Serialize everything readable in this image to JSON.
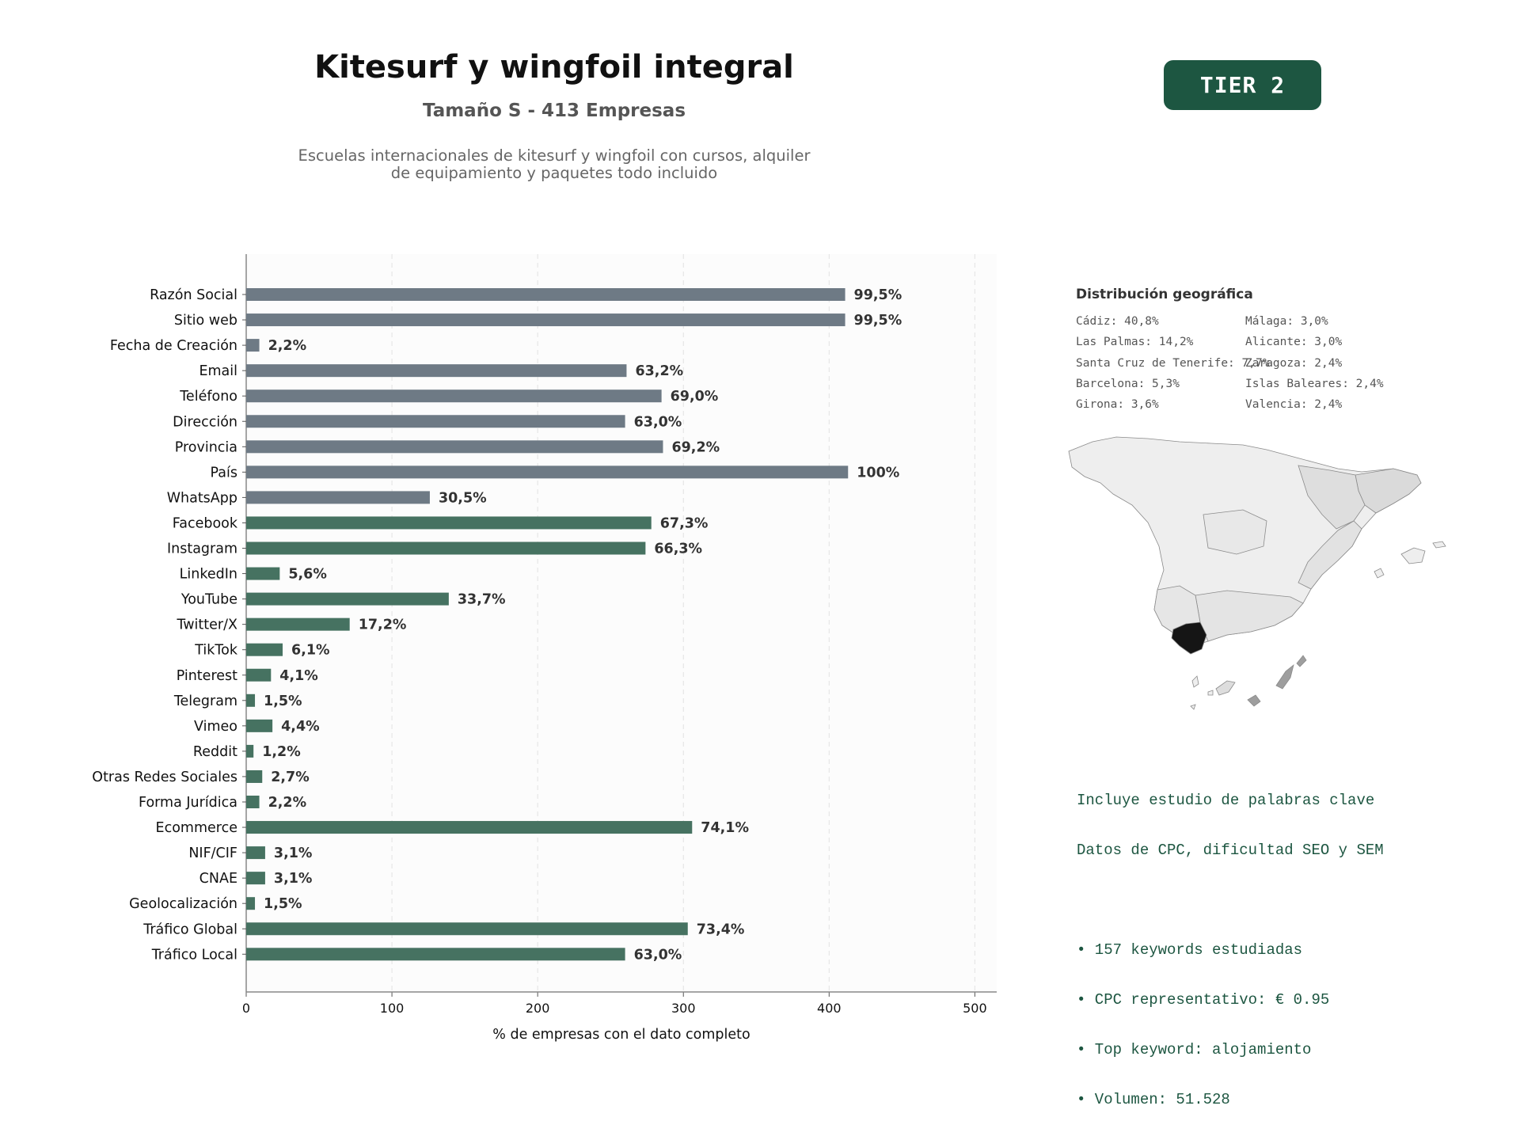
{
  "header": {
    "title": "Kitesurf y wingfoil integral",
    "subtitle": "Tamaño S - 413 Empresas",
    "description_line1": "Escuelas internacionales de kitesurf y wingfoil con cursos, alquiler",
    "description_line2": "de equipamiento y paquetes todo incluido",
    "tier_label": "TIER 2"
  },
  "colors": {
    "gray_bar": "#6e7a85",
    "green_bar": "#467261",
    "accent": "#1d5641",
    "highlight_region": "#151515"
  },
  "chart_data": {
    "type": "bar",
    "orientation": "horizontal",
    "xlabel": "% de empresas con el dato completo",
    "xlim": [
      0,
      515
    ],
    "xticks": [
      0,
      100,
      200,
      300,
      400,
      500
    ],
    "grid": "vertical dashed",
    "categories": [
      "Razón Social",
      "Sitio web",
      "Fecha de Creación",
      "Email",
      "Teléfono",
      "Dirección",
      "Provincia",
      "País",
      "WhatsApp",
      "Facebook",
      "Instagram",
      "LinkedIn",
      "YouTube",
      "Twitter/X",
      "TikTok",
      "Pinterest",
      "Telegram",
      "Vimeo",
      "Reddit",
      "Otras Redes Sociales",
      "Forma Jurídica",
      "Ecommerce",
      "NIF/CIF",
      "CNAE",
      "Geolocalización",
      "Tráfico Global",
      "Tráfico Local"
    ],
    "values": [
      411,
      411,
      9,
      261,
      285,
      260,
      286,
      413,
      126,
      278,
      274,
      23,
      139,
      71,
      25,
      17,
      6,
      18,
      5,
      11,
      9,
      306,
      13,
      13,
      6,
      303,
      260
    ],
    "labels": [
      "99,5%",
      "99,5%",
      "2,2%",
      "63,2%",
      "69,0%",
      "63,0%",
      "69,2%",
      "100%",
      "30,5%",
      "67,3%",
      "66,3%",
      "5,6%",
      "33,7%",
      "17,2%",
      "6,1%",
      "4,1%",
      "1,5%",
      "4,4%",
      "1,2%",
      "2,7%",
      "2,2%",
      "74,1%",
      "3,1%",
      "3,1%",
      "1,5%",
      "73,4%",
      "63,0%"
    ],
    "groups": [
      "gray",
      "gray",
      "gray",
      "gray",
      "gray",
      "gray",
      "gray",
      "gray",
      "gray",
      "green",
      "green",
      "green",
      "green",
      "green",
      "green",
      "green",
      "green",
      "green",
      "green",
      "green",
      "green",
      "green",
      "green",
      "green",
      "green",
      "green",
      "green"
    ]
  },
  "geo": {
    "title": "Distribución geográfica",
    "items": [
      "Cádiz: 40,8%",
      "Las Palmas: 14,2%",
      "Santa Cruz de Tenerife: 7,7%",
      "Barcelona: 5,3%",
      "Girona: 3,6%",
      "Málaga: 3,0%",
      "Alicante: 3,0%",
      "Zaragoza: 2,4%",
      "Islas Baleares: 2,4%",
      "Valencia: 2,4%"
    ]
  },
  "keywords": {
    "line1": "Incluye estudio de palabras clave",
    "line2": "Datos de CPC, dificultad SEO y SEM",
    "bullet1": "• 157 keywords estudiadas",
    "bullet2": "• CPC representativo: € 0.95",
    "bullet3": "• Top keyword: alojamiento",
    "bullet4": "• Volumen: 51.528"
  }
}
